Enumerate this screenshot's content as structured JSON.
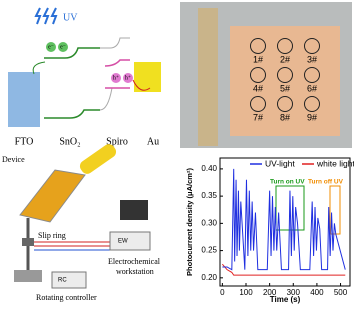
{
  "panels": {
    "band_diagram": {
      "uv": "UV",
      "layers": [
        "FTO",
        "SnO₂",
        "Spiro",
        "Au"
      ],
      "electrons": [
        "e⁻",
        "e⁻"
      ],
      "holes": [
        "h⁺",
        "h⁺"
      ]
    },
    "sample_photo": {
      "labels": [
        "1#",
        "2#",
        "3#",
        "4#",
        "5#",
        "6#",
        "7#",
        "8#",
        "9#"
      ]
    },
    "setup": {
      "device": "Device",
      "slip_ring": "Slip ring",
      "ew": "EW",
      "ew_label": [
        "Electrochemical",
        "workstation"
      ],
      "rc": "RC",
      "rc_label": "Rotating controller"
    }
  },
  "chart_data": {
    "type": "line",
    "x_label": "Time (s)",
    "y_label": "Photocurrent density (μA/cm²)",
    "x": [
      0,
      20,
      40,
      48,
      52,
      58,
      62,
      68,
      72,
      78,
      95,
      102,
      108,
      114,
      120,
      126,
      132,
      140,
      150,
      190,
      200,
      206,
      212,
      218,
      224,
      230,
      238,
      250,
      280,
      286,
      292,
      298,
      304,
      310,
      318,
      330,
      370,
      380,
      386,
      392,
      398,
      404,
      412,
      420,
      445,
      450,
      456,
      462,
      468,
      474,
      480,
      520
    ],
    "series": [
      {
        "name": "UV-light",
        "color": "#1f2fe0",
        "values": [
          0.22,
          0.22,
          0.215,
          0.4,
          0.23,
          0.38,
          0.24,
          0.36,
          0.25,
          0.34,
          0.215,
          0.38,
          0.24,
          0.36,
          0.25,
          0.34,
          0.25,
          0.32,
          0.215,
          0.215,
          0.36,
          0.24,
          0.35,
          0.25,
          0.33,
          0.25,
          0.32,
          0.215,
          0.215,
          0.36,
          0.24,
          0.35,
          0.25,
          0.33,
          0.3,
          0.215,
          0.215,
          0.34,
          0.24,
          0.33,
          0.25,
          0.31,
          0.29,
          0.215,
          0.215,
          0.33,
          0.24,
          0.32,
          0.25,
          0.3,
          0.28,
          0.215
        ]
      },
      {
        "name": "white light",
        "color": "#e02020",
        "values": [
          0.225,
          0.215,
          0.21,
          0.205,
          0.205,
          0.205,
          0.205,
          0.205,
          0.205,
          0.205,
          0.205,
          0.205,
          0.205,
          0.205,
          0.205,
          0.205,
          0.205,
          0.205,
          0.205,
          0.205,
          0.205,
          0.205,
          0.205,
          0.205,
          0.205,
          0.205,
          0.205,
          0.205,
          0.205,
          0.205,
          0.205,
          0.205,
          0.205,
          0.205,
          0.205,
          0.205,
          0.205,
          0.205,
          0.205,
          0.205,
          0.205,
          0.205,
          0.205,
          0.205,
          0.205,
          0.205,
          0.205,
          0.205,
          0.205,
          0.205,
          0.205,
          0.205
        ]
      }
    ],
    "annotations": [
      {
        "text": "Turn on UV",
        "color": "#1a9a1a"
      },
      {
        "text": "Turn off UV",
        "color": "#f08c00"
      }
    ],
    "xlim": [
      -10,
      540
    ],
    "xticks": [
      0,
      100,
      200,
      300,
      400,
      500
    ],
    "ylim": [
      0.185,
      0.42
    ],
    "yticks": [
      {
        "value": 0.2,
        "label": "0.20"
      },
      0.25,
      {
        "value": 0.3,
        "label": "0.30"
      },
      0.35,
      {
        "value": 0.4,
        "label": "0.40"
      }
    ],
    "legend": "upper center"
  }
}
